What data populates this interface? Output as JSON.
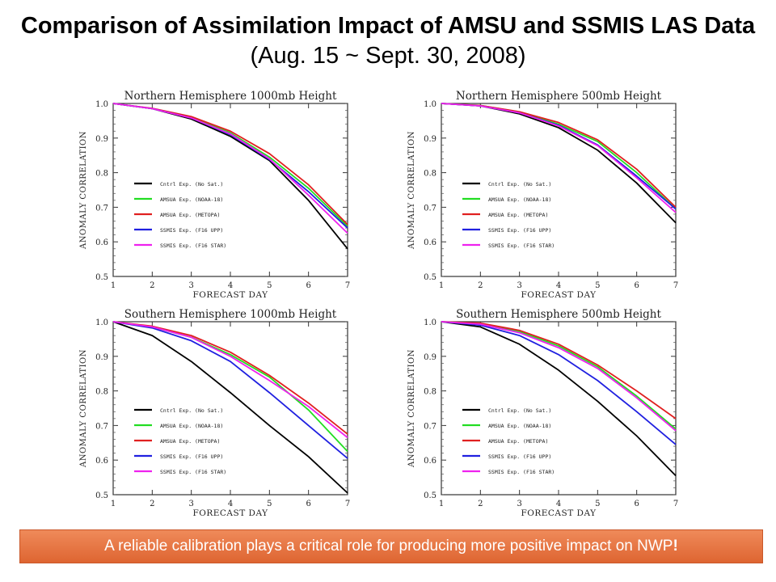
{
  "header": {
    "title_bold": "Comparison of Assimilation Impact of AMSU and SSMIS LAS Data",
    "title_rest": "(Aug. 15 ~ Sept. 30, 2008)"
  },
  "banner": {
    "text": "A reliable calibration plays a critical role for producing more positive impact on NWP",
    "excl": "!"
  },
  "chart_data": [
    {
      "type": "line",
      "title": "Northern Hemisphere 1000mb Height",
      "xlabel": "FORECAST DAY",
      "ylabel": "ANOMALY CORRELATION",
      "x": [
        1,
        2,
        3,
        4,
        5,
        6,
        7
      ],
      "xlim": [
        1,
        7
      ],
      "ylim": [
        0.5,
        1.0
      ],
      "yticks": [
        "0.5",
        "0.6",
        "0.7",
        "0.8",
        "0.9",
        "1.0"
      ],
      "xticks": [
        "1",
        "2",
        "3",
        "4",
        "5",
        "6",
        "7"
      ],
      "legend_position": "center-left",
      "series": [
        {
          "name": "Cntrl Exp. (No Sat.)",
          "color": "#000000",
          "values": [
            1.0,
            0.985,
            0.955,
            0.905,
            0.835,
            0.72,
            0.58
          ]
        },
        {
          "name": "AMSUA Exp. (NOAA-18)",
          "color": "#22dd22",
          "values": [
            1.0,
            0.985,
            0.96,
            0.915,
            0.845,
            0.755,
            0.645
          ]
        },
        {
          "name": "AMSUA Exp. (METOPA)",
          "color": "#e02020",
          "values": [
            1.0,
            0.986,
            0.962,
            0.92,
            0.855,
            0.765,
            0.65
          ]
        },
        {
          "name": "SSMIS Exp. (F16 UPP)",
          "color": "#2020e0",
          "values": [
            1.0,
            0.985,
            0.958,
            0.91,
            0.838,
            0.745,
            0.64
          ]
        },
        {
          "name": "SSMIS Exp. (F16 STAR)",
          "color": "#ee22ee",
          "values": [
            1.0,
            0.985,
            0.958,
            0.912,
            0.84,
            0.735,
            0.625
          ]
        }
      ]
    },
    {
      "type": "line",
      "title": "Northern Hemisphere 500mb Height",
      "xlabel": "FORECAST DAY",
      "ylabel": "ANOMALY CORRELATION",
      "x": [
        1,
        2,
        3,
        4,
        5,
        6,
        7
      ],
      "xlim": [
        1,
        7
      ],
      "ylim": [
        0.5,
        1.0
      ],
      "yticks": [
        "0.5",
        "0.6",
        "0.7",
        "0.8",
        "0.9",
        "1.0"
      ],
      "xticks": [
        "1",
        "2",
        "3",
        "4",
        "5",
        "6",
        "7"
      ],
      "legend_position": "center-left",
      "series": [
        {
          "name": "Cntrl Exp. (No Sat.)",
          "color": "#000000",
          "values": [
            1.0,
            0.993,
            0.97,
            0.93,
            0.865,
            0.77,
            0.655
          ]
        },
        {
          "name": "AMSUA Exp. (NOAA-18)",
          "color": "#22dd22",
          "values": [
            1.0,
            0.994,
            0.975,
            0.94,
            0.89,
            0.8,
            0.695
          ]
        },
        {
          "name": "AMSUA Exp. (METOPA)",
          "color": "#e02020",
          "values": [
            1.0,
            0.994,
            0.976,
            0.945,
            0.895,
            0.81,
            0.7
          ]
        },
        {
          "name": "SSMIS Exp. (F16 UPP)",
          "color": "#2020e0",
          "values": [
            1.0,
            0.993,
            0.973,
            0.937,
            0.88,
            0.79,
            0.695
          ]
        },
        {
          "name": "SSMIS Exp. (F16 STAR)",
          "color": "#ee22ee",
          "values": [
            1.0,
            0.993,
            0.973,
            0.935,
            0.878,
            0.785,
            0.685
          ]
        }
      ]
    },
    {
      "type": "line",
      "title": "Southern Hemisphere 1000mb Height",
      "xlabel": "FORECAST DAY",
      "ylabel": "ANOMALY CORRELATION",
      "x": [
        1,
        2,
        3,
        4,
        5,
        6,
        7
      ],
      "xlim": [
        1,
        7
      ],
      "ylim": [
        0.5,
        1.0
      ],
      "yticks": [
        "0.5",
        "0.6",
        "0.7",
        "0.8",
        "0.9",
        "1.0"
      ],
      "xticks": [
        "1",
        "2",
        "3",
        "4",
        "5",
        "6",
        "7"
      ],
      "legend_position": "bottom-left",
      "series": [
        {
          "name": "Cntrl Exp. (No Sat.)",
          "color": "#000000",
          "values": [
            1.0,
            0.96,
            0.885,
            0.795,
            0.7,
            0.61,
            0.505
          ]
        },
        {
          "name": "AMSUA Exp. (NOAA-18)",
          "color": "#22dd22",
          "values": [
            1.0,
            0.985,
            0.955,
            0.905,
            0.84,
            0.745,
            0.625
          ]
        },
        {
          "name": "AMSUA Exp. (METOPA)",
          "color": "#e02020",
          "values": [
            1.0,
            0.987,
            0.96,
            0.912,
            0.845,
            0.765,
            0.675
          ]
        },
        {
          "name": "SSMIS Exp. (F16 UPP)",
          "color": "#2020e0",
          "values": [
            1.0,
            0.982,
            0.945,
            0.885,
            0.795,
            0.7,
            0.605
          ]
        },
        {
          "name": "SSMIS Exp. (F16 STAR)",
          "color": "#ee22ee",
          "values": [
            1.0,
            0.985,
            0.955,
            0.9,
            0.83,
            0.755,
            0.665
          ]
        }
      ]
    },
    {
      "type": "line",
      "title": "Southern Hemisphere 500mb Height",
      "xlabel": "FORECAST DAY",
      "ylabel": "ANOMALY CORRELATION",
      "x": [
        1,
        2,
        3,
        4,
        5,
        6,
        7
      ],
      "xlim": [
        1,
        7
      ],
      "ylim": [
        0.5,
        1.0
      ],
      "yticks": [
        "0.5",
        "0.6",
        "0.7",
        "0.8",
        "0.9",
        "1.0"
      ],
      "xticks": [
        "1",
        "2",
        "3",
        "4",
        "5",
        "6",
        "7"
      ],
      "legend_position": "bottom-left",
      "series": [
        {
          "name": "Cntrl Exp. (No Sat.)",
          "color": "#000000",
          "values": [
            1.0,
            0.985,
            0.935,
            0.86,
            0.77,
            0.67,
            0.555
          ]
        },
        {
          "name": "AMSUA Exp. (NOAA-18)",
          "color": "#22dd22",
          "values": [
            1.0,
            0.995,
            0.972,
            0.93,
            0.87,
            0.785,
            0.69
          ]
        },
        {
          "name": "AMSUA Exp. (METOPA)",
          "color": "#e02020",
          "values": [
            1.0,
            0.996,
            0.975,
            0.935,
            0.875,
            0.8,
            0.72
          ]
        },
        {
          "name": "SSMIS Exp. (F16 UPP)",
          "color": "#2020e0",
          "values": [
            1.0,
            0.99,
            0.96,
            0.905,
            0.83,
            0.74,
            0.645
          ]
        },
        {
          "name": "SSMIS Exp. (F16 STAR)",
          "color": "#ee22ee",
          "values": [
            1.0,
            0.993,
            0.968,
            0.925,
            0.865,
            0.78,
            0.685
          ]
        }
      ]
    }
  ]
}
